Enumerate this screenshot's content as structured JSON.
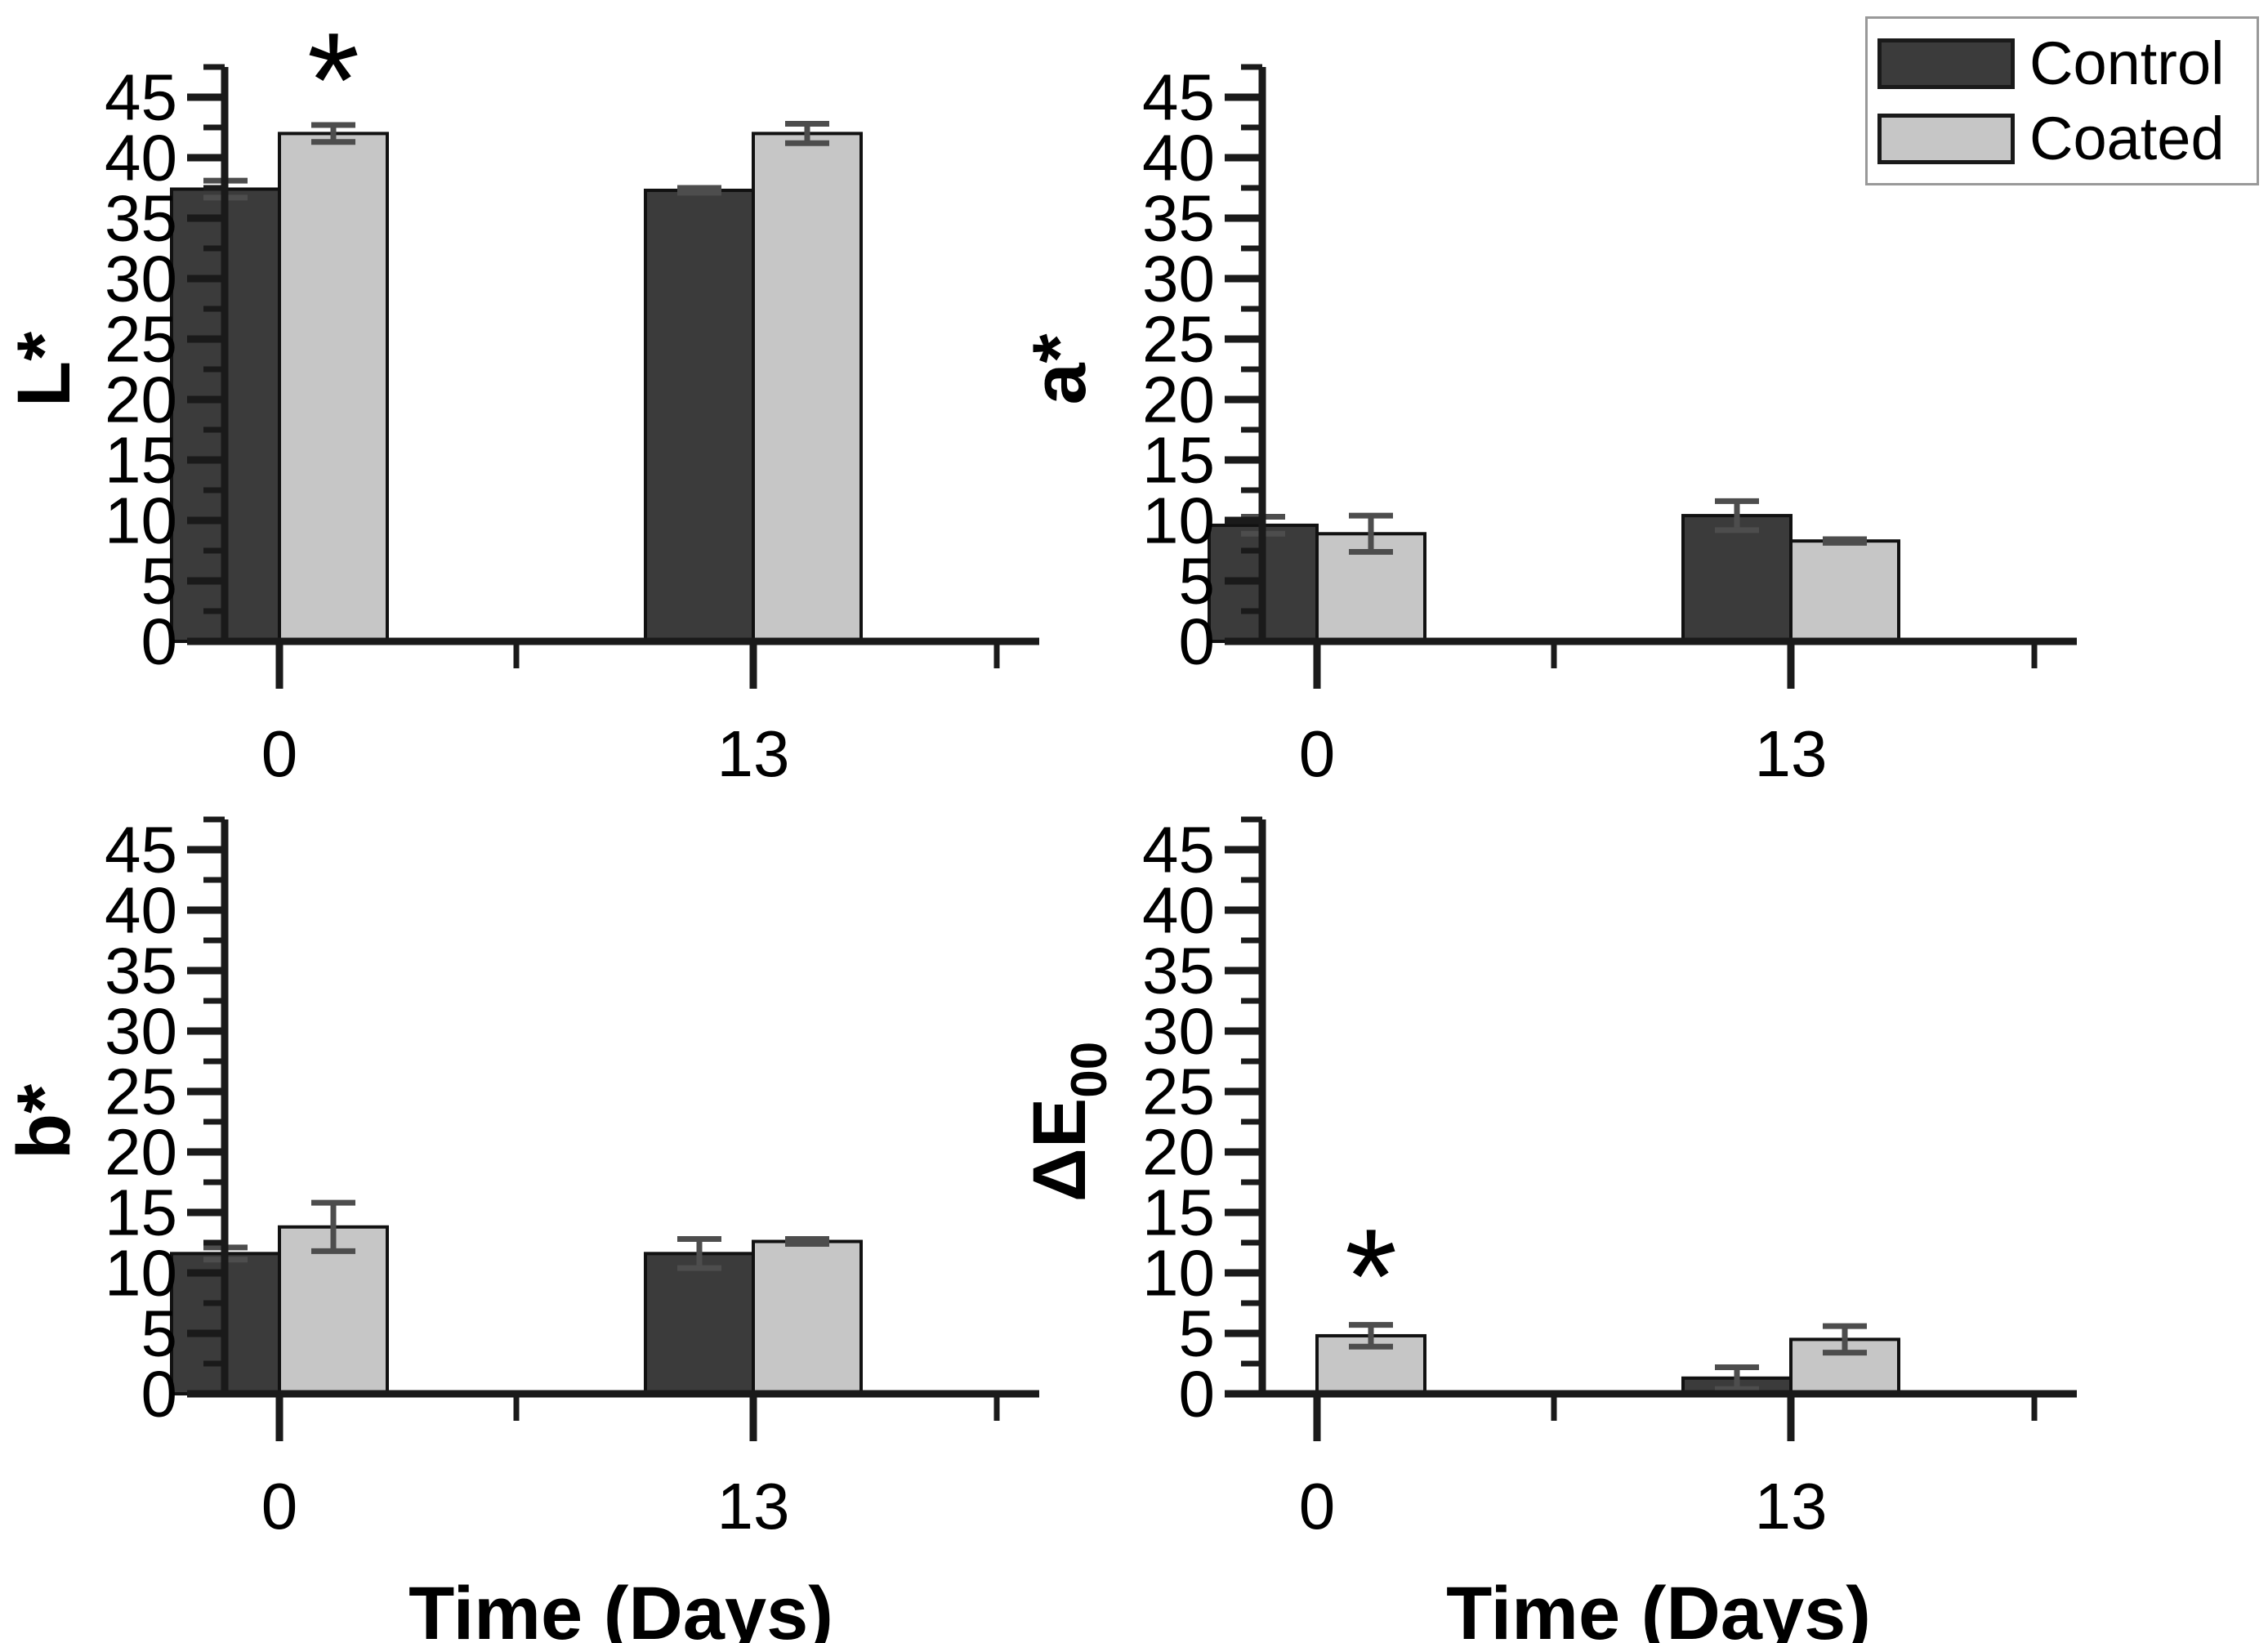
{
  "figure": {
    "background": "#ffffff"
  },
  "legend": {
    "items": [
      {
        "label": "Control",
        "color": "#3b3b3b"
      },
      {
        "label": "Coated",
        "color": "#c6c6c6"
      }
    ]
  },
  "style": {
    "bar_colors": {
      "Control": "#3b3b3b",
      "Coated": "#c6c6c6"
    },
    "bar_border": "#111111",
    "error_bar_color": "#4d4d4d",
    "axis_color": "#1a1a1a",
    "text_color": "#000000",
    "legend_border": "#999999"
  },
  "chart_data": [
    {
      "type": "bar",
      "position": "top-left",
      "title": "",
      "ylabel": "L*",
      "ylabel_sub": "",
      "xlabel": "",
      "categories": [
        "0",
        "13"
      ],
      "ylim": [
        0,
        45
      ],
      "ytick_major": 5,
      "ytick_minor": 2.5,
      "grid": false,
      "series": [
        {
          "name": "Control",
          "values": [
            37.4,
            37.3
          ],
          "errors": [
            0.7,
            0.2
          ]
        },
        {
          "name": "Coated",
          "values": [
            42.0,
            42.0
          ],
          "errors": [
            0.7,
            0.8
          ]
        }
      ],
      "annotations": [
        {
          "text": "*",
          "category_index": 0,
          "series": "Coated",
          "y": 46.5
        }
      ]
    },
    {
      "type": "bar",
      "position": "top-right",
      "title": "",
      "ylabel": "a*",
      "ylabel_sub": "",
      "xlabel": "",
      "categories": [
        "0",
        "13"
      ],
      "ylim": [
        0,
        45
      ],
      "ytick_major": 5,
      "ytick_minor": 2.5,
      "grid": false,
      "series": [
        {
          "name": "Control",
          "values": [
            9.6,
            10.4
          ],
          "errors": [
            0.7,
            1.2
          ]
        },
        {
          "name": "Coated",
          "values": [
            8.9,
            8.3
          ],
          "errors": [
            1.5,
            0.15
          ]
        }
      ],
      "annotations": []
    },
    {
      "type": "bar",
      "position": "bottom-left",
      "title": "",
      "ylabel": "b*",
      "ylabel_sub": "",
      "xlabel": "Time (Days)",
      "categories": [
        "0",
        "13"
      ],
      "ylim": [
        0,
        45
      ],
      "ytick_major": 5,
      "ytick_minor": 2.5,
      "grid": false,
      "series": [
        {
          "name": "Control",
          "values": [
            11.6,
            11.6
          ],
          "errors": [
            0.5,
            1.2
          ]
        },
        {
          "name": "Coated",
          "values": [
            13.8,
            12.6
          ],
          "errors": [
            2.0,
            0.2
          ]
        }
      ],
      "annotations": []
    },
    {
      "type": "bar",
      "position": "bottom-right",
      "title": "",
      "ylabel": "ΔE",
      "ylabel_sub": "00",
      "xlabel": "Time (Days)",
      "categories": [
        "0",
        "13"
      ],
      "ylim": [
        0,
        45
      ],
      "ytick_major": 5,
      "ytick_minor": 2.5,
      "grid": false,
      "series": [
        {
          "name": "Control",
          "values": [
            0,
            1.3
          ],
          "errors": [
            null,
            0.9
          ]
        },
        {
          "name": "Coated",
          "values": [
            4.8,
            4.5
          ],
          "errors": [
            0.9,
            1.1
          ]
        }
      ],
      "annotations": [
        {
          "text": "*",
          "category_index": 0,
          "series": "Coated",
          "y": 9.8
        }
      ]
    }
  ]
}
